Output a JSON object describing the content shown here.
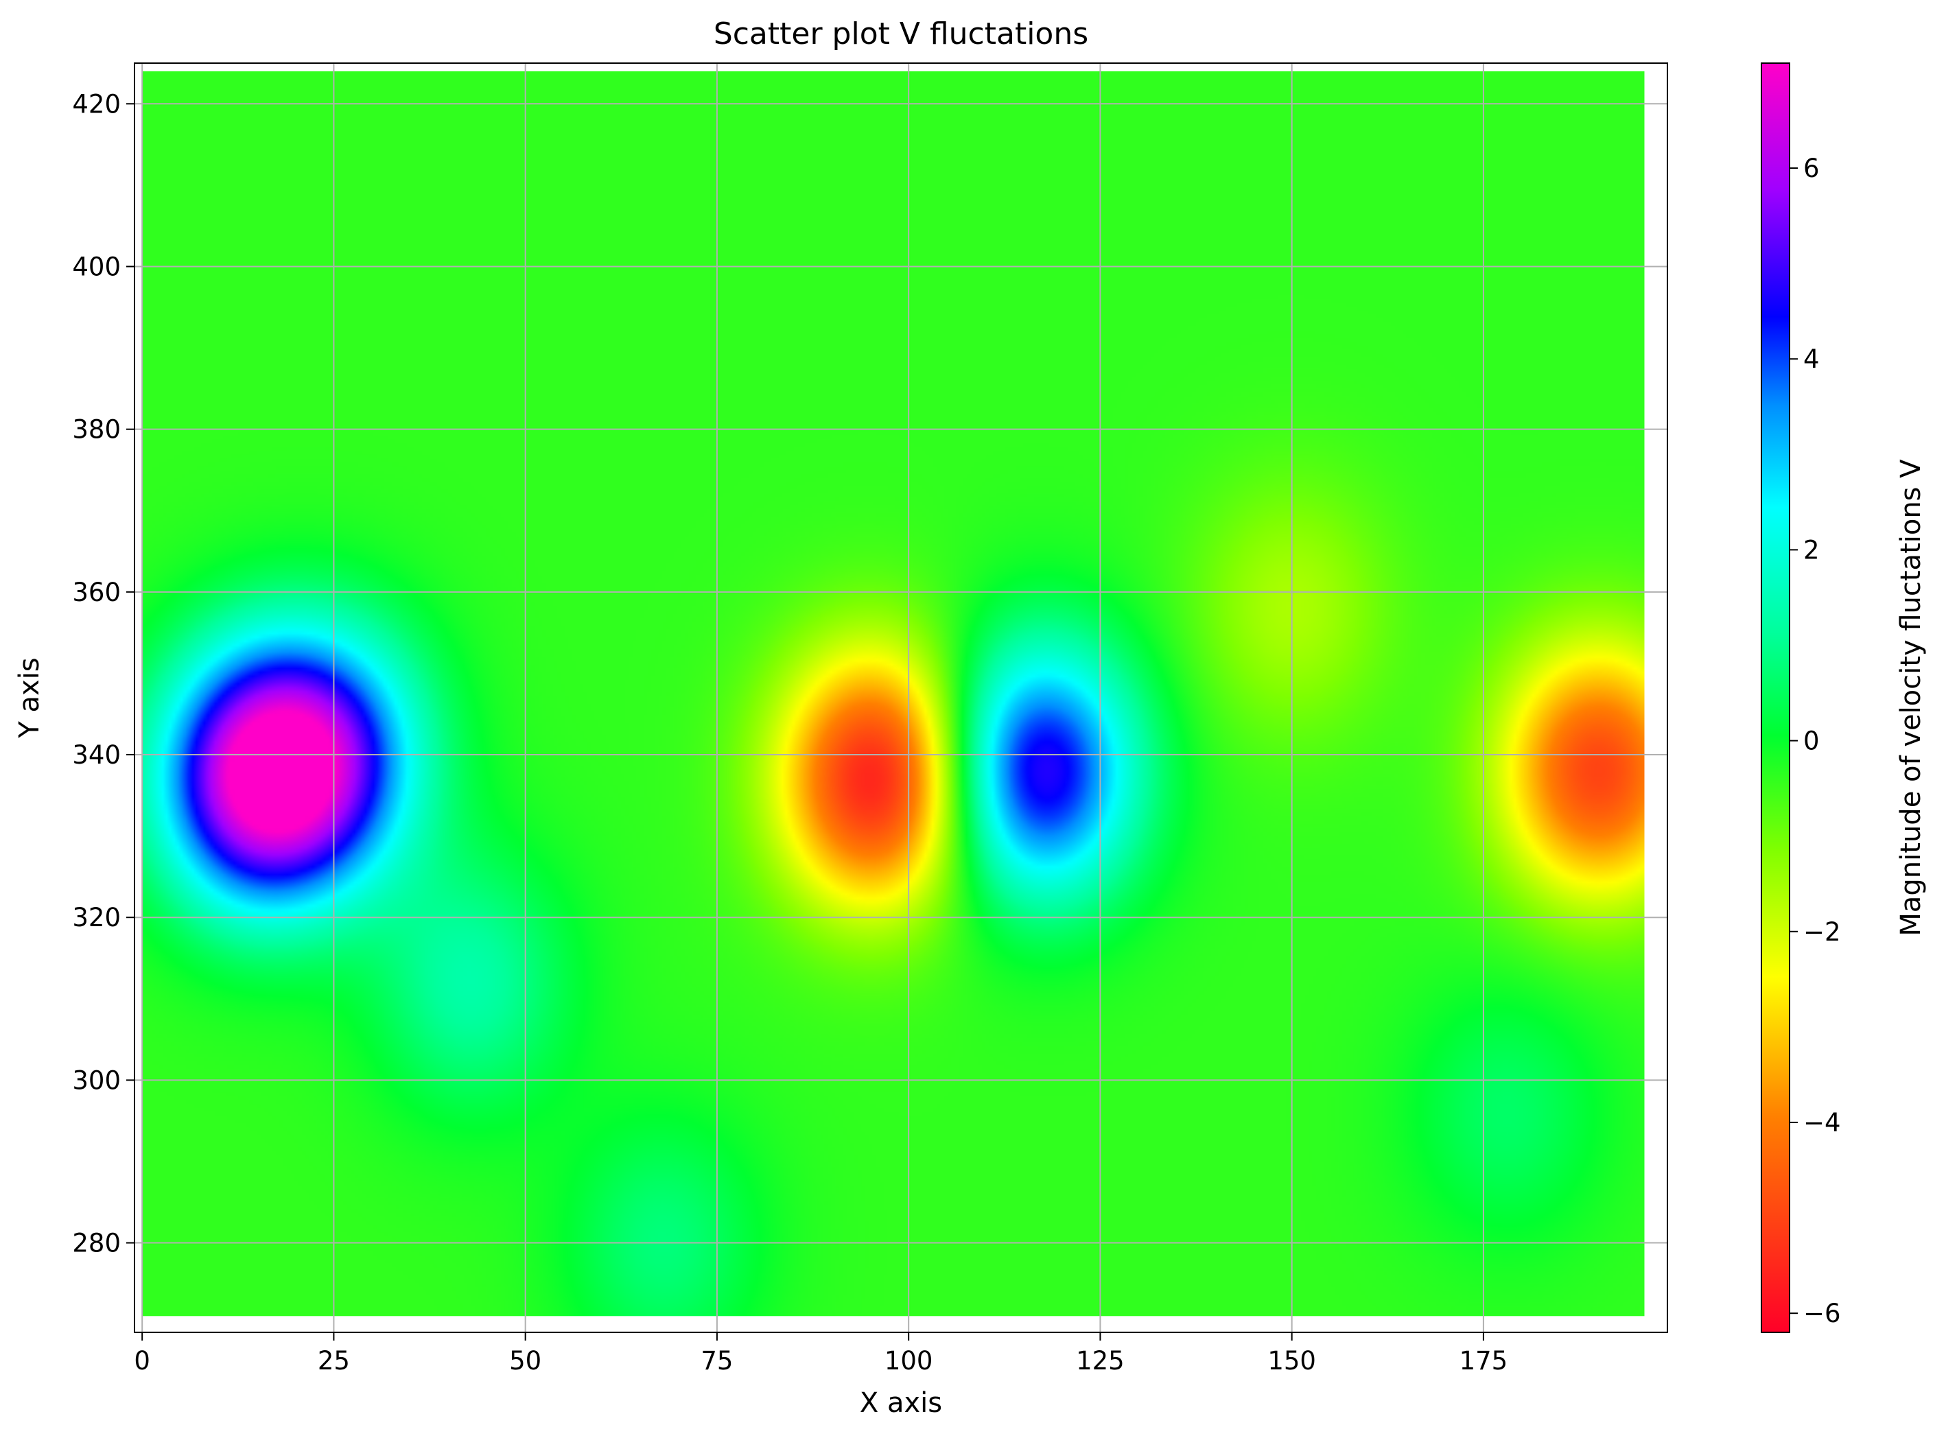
{
  "chart_data": {
    "type": "heatmap",
    "title": "Scatter plot V fluctations",
    "xlabel": "X axis",
    "ylabel": "Y axis",
    "xlim": [
      -1,
      199
    ],
    "ylim": [
      269,
      425
    ],
    "x_ticks": [
      0,
      25,
      50,
      75,
      100,
      125,
      150,
      175
    ],
    "y_ticks": [
      280,
      300,
      320,
      340,
      360,
      380,
      400,
      420
    ],
    "grid": true,
    "colormap": "gist_rainbow",
    "colorbar": {
      "label": "Magnitude of velocity fluctations V",
      "range": [
        -6.2,
        7.1
      ],
      "ticks": [
        -6,
        -4,
        -2,
        0,
        2,
        4,
        6
      ],
      "tick_labels": [
        "−6",
        "−4",
        "−2",
        "0",
        "2",
        "4",
        "6"
      ]
    },
    "data_extent": {
      "x": [
        0,
        196
      ],
      "y": [
        271,
        424
      ]
    },
    "background_value": -0.4,
    "features": [
      {
        "x": 15,
        "y": 337,
        "value": 6.5
      },
      {
        "x": 25,
        "y": 340,
        "value": 3.5
      },
      {
        "x": 43,
        "y": 312,
        "value": 1.3
      },
      {
        "x": 68,
        "y": 280,
        "value": 0.8
      },
      {
        "x": 96,
        "y": 337,
        "value": -5.8
      },
      {
        "x": 117,
        "y": 338,
        "value": 5.0
      },
      {
        "x": 190,
        "y": 338,
        "value": -5.0
      },
      {
        "x": 178,
        "y": 296,
        "value": 0.6
      },
      {
        "x": 150,
        "y": 358,
        "value": -1.6
      }
    ]
  }
}
